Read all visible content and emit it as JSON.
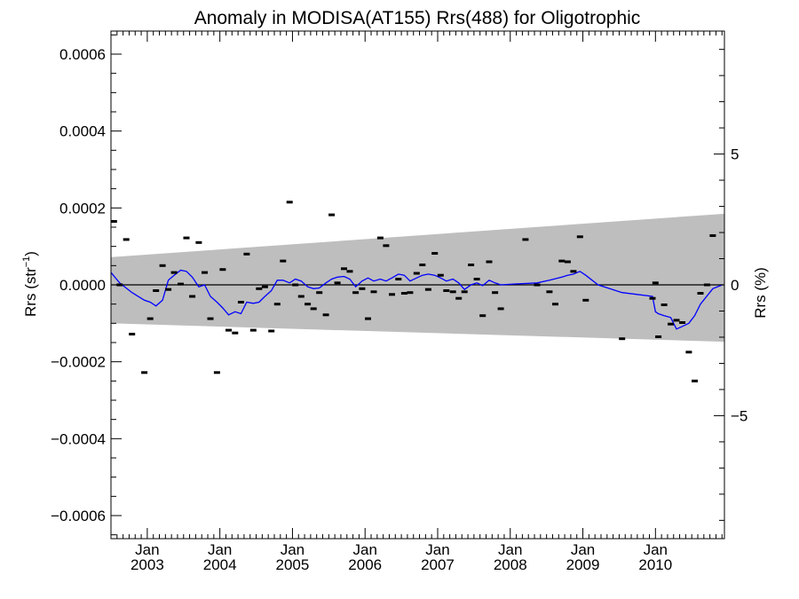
{
  "chart_data": {
    "type": "scatter",
    "title": "Anomaly in MODISA(AT155) Rrs(488) for Oligotrophic",
    "ylabel": {
      "main": "Rrs (str",
      "sup": "−1",
      "tail": ")"
    },
    "y2label": "Rrs (%)",
    "xlim": [
      2002.5,
      2010.95
    ],
    "ylim": [
      -0.00066,
      0.00066
    ],
    "y2lim": [
      -9.7,
      9.7
    ],
    "yticks": [
      {
        "v": 0.0006,
        "label": "0.0006"
      },
      {
        "v": 0.0004,
        "label": "0.0004"
      },
      {
        "v": 0.0002,
        "label": "0.0002"
      },
      {
        "v": 0.0,
        "label": "0.0000"
      },
      {
        "v": -0.0002,
        "label": "−0.0002"
      },
      {
        "v": -0.0004,
        "label": "−0.0004"
      },
      {
        "v": -0.0006,
        "label": "−0.0006"
      }
    ],
    "y2ticks": [
      {
        "v": 5,
        "label": "5"
      },
      {
        "v": 0,
        "label": "0"
      },
      {
        "v": -5,
        "label": "−5"
      }
    ],
    "xticks": [
      {
        "v": 2003,
        "month": "Jan",
        "year": "2003"
      },
      {
        "v": 2004,
        "month": "Jan",
        "year": "2004"
      },
      {
        "v": 2005,
        "month": "Jan",
        "year": "2005"
      },
      {
        "v": 2006,
        "month": "Jan",
        "year": "2006"
      },
      {
        "v": 2007,
        "month": "Jan",
        "year": "2007"
      },
      {
        "v": 2008,
        "month": "Jan",
        "year": "2008"
      },
      {
        "v": 2009,
        "month": "Jan",
        "year": "2009"
      },
      {
        "v": 2010,
        "month": "Jan",
        "year": "2010"
      }
    ],
    "band": {
      "left": [
        7.2e-05,
        -0.0001
      ],
      "right": [
        0.000185,
        -0.000148
      ],
      "color": "#bebebe"
    },
    "series": [
      {
        "kind": "points",
        "color": "#000000",
        "points": [
          [
            2002.54,
            0.000165
          ],
          [
            2002.62,
            0.0
          ],
          [
            2002.71,
            0.000118
          ],
          [
            2002.79,
            -0.000128
          ],
          [
            2002.96,
            -0.000228
          ],
          [
            2003.04,
            -8.8e-05
          ],
          [
            2003.12,
            -1.5e-05
          ],
          [
            2003.21,
            5e-05
          ],
          [
            2003.29,
            -1.2e-05
          ],
          [
            2003.37,
            3.2e-05
          ],
          [
            2003.46,
            2e-06
          ],
          [
            2003.54,
            0.000122
          ],
          [
            2003.62,
            -3e-05
          ],
          [
            2003.71,
            0.00011
          ],
          [
            2003.79,
            3.2e-05
          ],
          [
            2003.87,
            -8.8e-05
          ],
          [
            2003.96,
            -0.000228
          ],
          [
            2004.04,
            4e-05
          ],
          [
            2004.12,
            -0.000118
          ],
          [
            2004.21,
            -0.000125
          ],
          [
            2004.29,
            -4.5e-05
          ],
          [
            2004.37,
            8e-05
          ],
          [
            2004.46,
            -0.000118
          ],
          [
            2004.54,
            -1e-05
          ],
          [
            2004.62,
            -5e-06
          ],
          [
            2004.71,
            -0.00012
          ],
          [
            2004.79,
            -5e-05
          ],
          [
            2004.87,
            6.2e-05
          ],
          [
            2004.96,
            0.000215
          ],
          [
            2005.04,
            0.0
          ],
          [
            2005.12,
            -3e-05
          ],
          [
            2005.21,
            -5e-05
          ],
          [
            2005.29,
            -6.2e-05
          ],
          [
            2005.37,
            -2e-05
          ],
          [
            2005.46,
            -7.8e-05
          ],
          [
            2005.54,
            0.000182
          ],
          [
            2005.62,
            5e-06
          ],
          [
            2005.71,
            4.2e-05
          ],
          [
            2005.79,
            3.5e-05
          ],
          [
            2005.87,
            -2e-05
          ],
          [
            2005.96,
            -1e-05
          ],
          [
            2006.04,
            -8.8e-05
          ],
          [
            2006.12,
            -1.8e-05
          ],
          [
            2006.21,
            0.000122
          ],
          [
            2006.29,
            0.000102
          ],
          [
            2006.37,
            -2.5e-05
          ],
          [
            2006.46,
            1.5e-05
          ],
          [
            2006.54,
            -2.2e-05
          ],
          [
            2006.62,
            -2e-05
          ],
          [
            2006.71,
            3e-05
          ],
          [
            2006.79,
            5.2e-05
          ],
          [
            2006.87,
            -1.2e-05
          ],
          [
            2006.96,
            8.2e-05
          ],
          [
            2007.04,
            2.5e-05
          ],
          [
            2007.12,
            -1.5e-05
          ],
          [
            2007.21,
            -1.8e-05
          ],
          [
            2007.29,
            -3.5e-05
          ],
          [
            2007.37,
            -1.8e-05
          ],
          [
            2007.46,
            5.2e-05
          ],
          [
            2007.54,
            1.5e-05
          ],
          [
            2007.62,
            -8e-05
          ],
          [
            2007.71,
            6e-05
          ],
          [
            2007.79,
            -2e-05
          ],
          [
            2007.87,
            -6.2e-05
          ],
          [
            2008.21,
            0.000118
          ],
          [
            2008.37,
            0.0
          ],
          [
            2008.54,
            -1.8e-05
          ],
          [
            2008.62,
            -5e-05
          ],
          [
            2008.71,
            6.2e-05
          ],
          [
            2008.79,
            6e-05
          ],
          [
            2008.87,
            3.5e-05
          ],
          [
            2008.96,
            0.000125
          ],
          [
            2009.04,
            -4e-05
          ],
          [
            2009.54,
            -0.00014
          ],
          [
            2009.96,
            -3.5e-05
          ],
          [
            2010.0,
            5e-06
          ],
          [
            2010.04,
            -0.000135
          ],
          [
            2010.12,
            -5.2e-05
          ],
          [
            2010.21,
            -0.000102
          ],
          [
            2010.29,
            -9.2e-05
          ],
          [
            2010.37,
            -9.8e-05
          ],
          [
            2010.46,
            -0.000175
          ],
          [
            2010.54,
            -0.00025
          ],
          [
            2010.62,
            -2.2e-05
          ],
          [
            2010.71,
            0.0
          ],
          [
            2010.79,
            0.000128
          ]
        ]
      },
      {
        "kind": "line",
        "color": "#0000ff",
        "points": [
          [
            2002.5,
            3.2e-05
          ],
          [
            2002.62,
            5e-06
          ],
          [
            2002.79,
            -2e-05
          ],
          [
            2002.96,
            -4e-05
          ],
          [
            2003.04,
            -4.5e-05
          ],
          [
            2003.12,
            -5.5e-05
          ],
          [
            2003.21,
            -4e-05
          ],
          [
            2003.29,
            1.2e-05
          ],
          [
            2003.37,
            2.5e-05
          ],
          [
            2003.46,
            3.8e-05
          ],
          [
            2003.54,
            3.5e-05
          ],
          [
            2003.62,
            2e-05
          ],
          [
            2003.71,
            -5e-06
          ],
          [
            2003.79,
            0.0
          ],
          [
            2003.87,
            -3e-05
          ],
          [
            2003.96,
            -4.5e-05
          ],
          [
            2004.04,
            -6e-05
          ],
          [
            2004.12,
            -7.8e-05
          ],
          [
            2004.21,
            -7e-05
          ],
          [
            2004.29,
            -7.5e-05
          ],
          [
            2004.37,
            -4.5e-05
          ],
          [
            2004.46,
            -4.8e-05
          ],
          [
            2004.54,
            -4.5e-05
          ],
          [
            2004.62,
            -3e-05
          ],
          [
            2004.71,
            -1.5e-05
          ],
          [
            2004.79,
            1.2e-05
          ],
          [
            2004.87,
            1.2e-05
          ],
          [
            2004.96,
            5e-06
          ],
          [
            2005.04,
            1.5e-05
          ],
          [
            2005.12,
            1e-05
          ],
          [
            2005.21,
            -5e-06
          ],
          [
            2005.29,
            -1e-05
          ],
          [
            2005.37,
            -8e-06
          ],
          [
            2005.46,
            5e-06
          ],
          [
            2005.54,
            1.5e-05
          ],
          [
            2005.62,
            2e-05
          ],
          [
            2005.71,
            2.2e-05
          ],
          [
            2005.79,
            1.5e-05
          ],
          [
            2005.87,
            -5e-06
          ],
          [
            2005.96,
            1e-05
          ],
          [
            2006.04,
            1.8e-05
          ],
          [
            2006.12,
            1e-05
          ],
          [
            2006.21,
            1.5e-05
          ],
          [
            2006.29,
            1e-05
          ],
          [
            2006.37,
            1.8e-05
          ],
          [
            2006.46,
            2.8e-05
          ],
          [
            2006.54,
            2.5e-05
          ],
          [
            2006.62,
            1e-05
          ],
          [
            2006.71,
            1.8e-05
          ],
          [
            2006.79,
            2.5e-05
          ],
          [
            2006.87,
            2.8e-05
          ],
          [
            2006.96,
            2.5e-05
          ],
          [
            2007.04,
            1.8e-05
          ],
          [
            2007.12,
            1e-05
          ],
          [
            2007.21,
            1.5e-05
          ],
          [
            2007.29,
            5e-06
          ],
          [
            2007.37,
            -1.2e-05
          ],
          [
            2007.46,
            0.0
          ],
          [
            2007.54,
            5e-06
          ],
          [
            2007.62,
            -2e-06
          ],
          [
            2007.71,
            1.2e-05
          ],
          [
            2007.79,
            5e-06
          ],
          [
            2007.87,
            0.0
          ],
          [
            2008.04,
            2e-06
          ],
          [
            2008.37,
            5e-06
          ],
          [
            2008.54,
            1.2e-05
          ],
          [
            2008.71,
            2e-05
          ],
          [
            2008.79,
            2.5e-05
          ],
          [
            2008.87,
            2.8e-05
          ],
          [
            2008.96,
            3.5e-05
          ],
          [
            2009.04,
            2.5e-05
          ],
          [
            2009.21,
            0.0
          ],
          [
            2009.54,
            -2e-05
          ],
          [
            2009.96,
            -3e-05
          ],
          [
            2010.0,
            -7e-05
          ],
          [
            2010.04,
            -7.5e-05
          ],
          [
            2010.12,
            -8e-05
          ],
          [
            2010.21,
            -8.5e-05
          ],
          [
            2010.29,
            -0.000115
          ],
          [
            2010.37,
            -0.000108
          ],
          [
            2010.46,
            -0.0001
          ],
          [
            2010.54,
            -8e-05
          ],
          [
            2010.62,
            -5e-05
          ],
          [
            2010.79,
            -1e-05
          ],
          [
            2010.92,
            0.0
          ]
        ]
      }
    ]
  }
}
